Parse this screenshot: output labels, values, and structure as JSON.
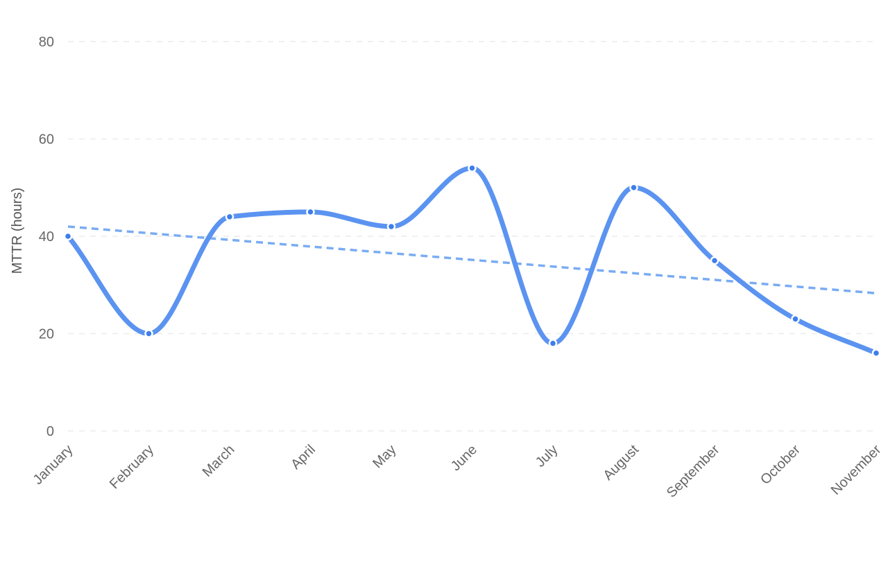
{
  "chart_data": {
    "type": "line",
    "categories": [
      "January",
      "February",
      "March",
      "April",
      "May",
      "June",
      "July",
      "August",
      "September",
      "October",
      "November"
    ],
    "series": [
      {
        "values": [
          40,
          20,
          44,
          45,
          42,
          54,
          18,
          50,
          35,
          23,
          16
        ],
        "color": "#5b93f0"
      }
    ],
    "trendline": {
      "style": "dashed",
      "color": "#79acf3",
      "start": 42,
      "end": 28.3
    },
    "xlabel": "",
    "ylabel": "MTTR (hours)",
    "ylim": [
      0,
      80
    ],
    "yticks": [
      0,
      20,
      40,
      60,
      80
    ],
    "grid": "horizontal-dashed",
    "legend": "none"
  }
}
